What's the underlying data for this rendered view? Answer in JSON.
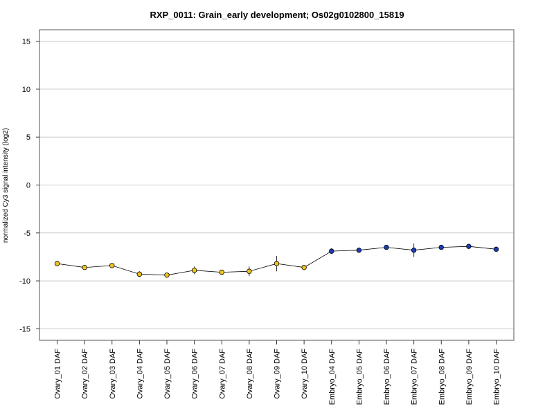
{
  "chart_data": {
    "type": "line",
    "title": "RXP_0011: Grain_early development; Os02g0102800_15819",
    "ylabel": "normalized Cy3 signal intensity (log2)",
    "xlabel": "",
    "ylim": [
      -16.2,
      16.2
    ],
    "yticks": [
      15,
      10,
      5,
      0,
      -5,
      -10,
      -15
    ],
    "grid": true,
    "categories": [
      "Ovary_01 DAF",
      "Ovary_02 DAF",
      "Ovary_03 DAF",
      "Ovary_04 DAF",
      "Ovary_05 DAF",
      "Ovary_06 DAF",
      "Ovary_07 DAF",
      "Ovary_08 DAF",
      "Ovary_09 DAF",
      "Ovary_10 DAF",
      "Embryo_04 DAF",
      "Embryo_05 DAF",
      "Embryo_06 DAF",
      "Embryo_07 DAF",
      "Embryo_08 DAF",
      "Embryo_09 DAF",
      "Embryo_10 DAF"
    ],
    "values": [
      -8.2,
      -8.6,
      -8.4,
      -9.3,
      -9.4,
      -8.9,
      -9.1,
      -9.0,
      -8.2,
      -8.6,
      -6.9,
      -6.8,
      -6.5,
      -6.8,
      -6.5,
      -6.4,
      -6.7
    ],
    "error": [
      0.1,
      0.1,
      0.1,
      0.3,
      0.1,
      0.4,
      0.1,
      0.5,
      0.8,
      0.1,
      0.3,
      0.1,
      0.1,
      0.7,
      0.1,
      0.2,
      0.1
    ],
    "colors": [
      "#f0c419",
      "#f0c419",
      "#f0c419",
      "#f0c419",
      "#f0c419",
      "#f0c419",
      "#f0c419",
      "#f0c419",
      "#f0c419",
      "#f0c419",
      "#1a3cb4",
      "#1a3cb4",
      "#1a3cb4",
      "#1a3cb4",
      "#1a3cb4",
      "#1a3cb4",
      "#1a3cb4"
    ]
  }
}
